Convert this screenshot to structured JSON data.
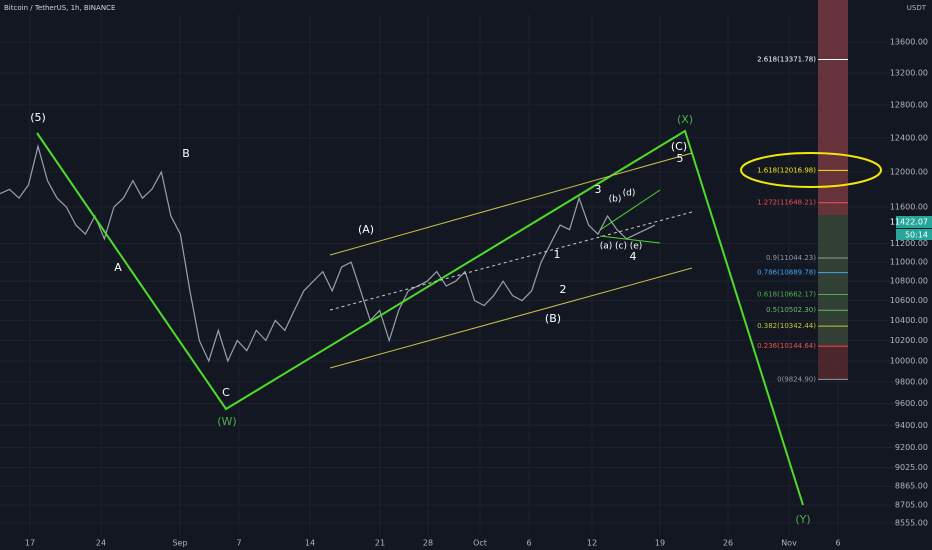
{
  "header": {
    "title": "Bitcoin / TetherUS, 1h, BINANCE",
    "currency": "USDT",
    "last_price": "11422.07",
    "countdown": "50:14"
  },
  "chart_data": {
    "type": "line",
    "log_scale": true,
    "color": "#9aa0a8",
    "ylim": [
      8555,
      13600
    ],
    "yticks": [
      {
        "value": 13600,
        "label": "13600.00"
      },
      {
        "value": 13200,
        "label": "13200.00"
      },
      {
        "value": 12800,
        "label": "12800.00"
      },
      {
        "value": 12400,
        "label": "12400.00"
      },
      {
        "value": 12000,
        "label": "12000.00"
      },
      {
        "value": 11600,
        "label": "11600.00"
      },
      {
        "value": 11200,
        "label": "11200.00"
      },
      {
        "value": 11000,
        "label": "11000.00"
      },
      {
        "value": 10800,
        "label": "10800.00"
      },
      {
        "value": 10600,
        "label": "10600.00"
      },
      {
        "value": 10400,
        "label": "10400.00"
      },
      {
        "value": 10200,
        "label": "10200.00"
      },
      {
        "value": 10000,
        "label": "10000.00"
      },
      {
        "value": 9800,
        "label": "9800.00"
      },
      {
        "value": 9600,
        "label": "9600.00"
      },
      {
        "value": 9400,
        "label": "9400.00"
      },
      {
        "value": 9200,
        "label": "9200.00"
      },
      {
        "value": 9025,
        "label": "9025.00"
      },
      {
        "value": 8865,
        "label": "8865.00"
      },
      {
        "value": 8705,
        "label": "8705.00"
      },
      {
        "value": 8555,
        "label": "8555.00"
      }
    ],
    "x_labels": [
      "17",
      "24",
      "Sep",
      "7",
      "14",
      "21",
      "28",
      "Oct",
      "6",
      "12",
      "19",
      "26",
      "Nov",
      "6"
    ],
    "values": [
      11750,
      11800,
      11700,
      11850,
      12300,
      11900,
      11700,
      11600,
      11400,
      11300,
      11500,
      11250,
      11600,
      11700,
      11900,
      11700,
      11800,
      12000,
      11500,
      11300,
      10700,
      10200,
      10000,
      10300,
      10000,
      10200,
      10100,
      10300,
      10200,
      10400,
      10300,
      10500,
      10700,
      10800,
      10900,
      10700,
      10950,
      11000,
      10700,
      10400,
      10500,
      10200,
      10500,
      10700,
      10750,
      10800,
      10900,
      10750,
      10800,
      10900,
      10600,
      10550,
      10650,
      10800,
      10650,
      10600,
      10700,
      11000,
      11200,
      11400,
      11350,
      11700,
      11400,
      11300,
      11500,
      11350,
      11250,
      11300,
      11350,
      11400
    ],
    "fib_levels": [
      {
        "label": "2.618(13371.78)",
        "price": 13371.78,
        "color": "#ffffff"
      },
      {
        "label": "1.618(12016.98)",
        "price": 12016.98,
        "color": "#f5e60a"
      },
      {
        "label": "1.272(11648.21)",
        "price": 11648.21,
        "color": "#ef5350"
      },
      {
        "label": "0.9(11044.23)",
        "price": 11044.23,
        "color": "#9598a1"
      },
      {
        "label": "0.786(10889.78)",
        "price": 10889.78,
        "color": "#42a5f5"
      },
      {
        "label": "0.618(10662.17)",
        "price": 10662.17,
        "color": "#4caf50"
      },
      {
        "label": "0.5(10502.30)",
        "price": 10502.3,
        "color": "#66bb6a"
      },
      {
        "label": "0.382(10342.44)",
        "price": 10342.44,
        "color": "#c0ca33"
      },
      {
        "label": "0.236(10144.64)",
        "price": 10144.64,
        "color": "#ef5350"
      },
      {
        "label": "0(9824.90)",
        "price": 9824.9,
        "color": "#9598a1"
      }
    ],
    "wave_labels": [
      "(5)",
      "A",
      "B",
      "C",
      "(W)",
      "(A)",
      "(B)",
      "1",
      "2",
      "3",
      "4",
      "5",
      "(a)",
      "(b)",
      "(c)",
      "(d)",
      "(e)",
      "(C)",
      "(X)",
      "(Y)"
    ]
  }
}
